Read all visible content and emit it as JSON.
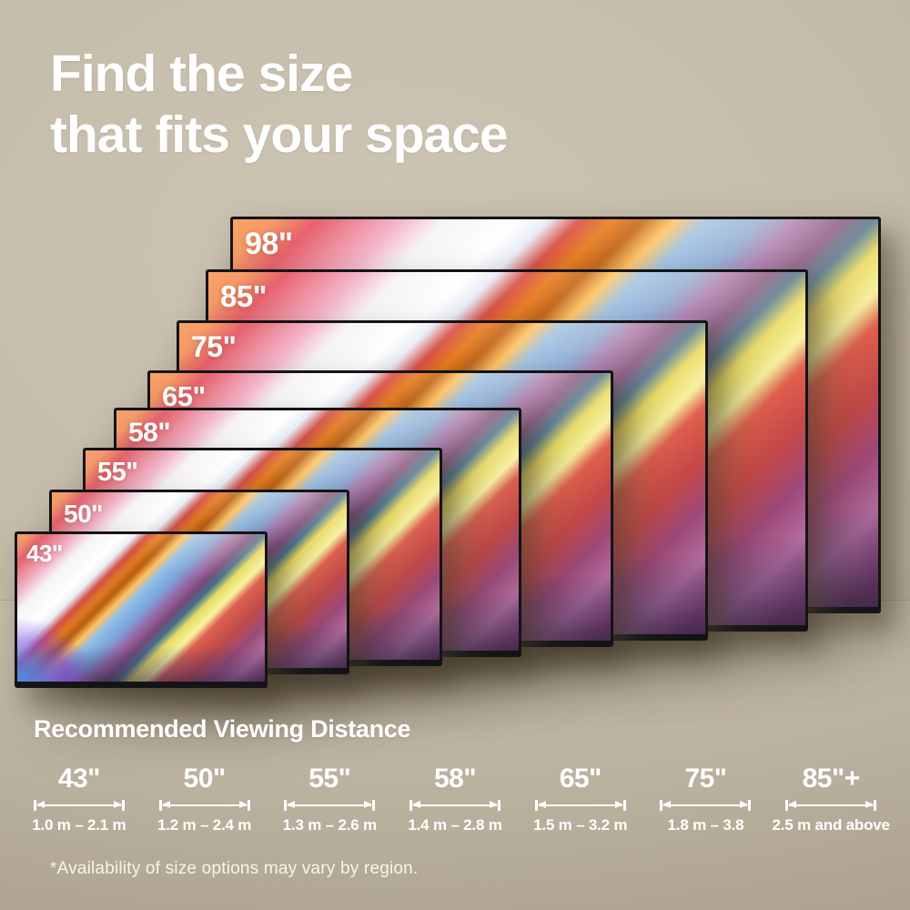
{
  "title": {
    "line1": "Find the size",
    "line2": "that fits your space"
  },
  "tvs": [
    {
      "label": "98\""
    },
    {
      "label": "85\""
    },
    {
      "label": "75\""
    },
    {
      "label": "65\""
    },
    {
      "label": "58\""
    },
    {
      "label": "55\""
    },
    {
      "label": "50\""
    },
    {
      "label": "43\""
    }
  ],
  "viewing_distance": {
    "heading": "Recommended Viewing Distance",
    "columns": [
      {
        "size": "43\"",
        "range": "1.0 m – 2.1 m"
      },
      {
        "size": "50\"",
        "range": "1.2 m – 2.4 m"
      },
      {
        "size": "55\"",
        "range": "1.3 m – 2.6 m"
      },
      {
        "size": "58\"",
        "range": "1.4 m – 2.8 m"
      },
      {
        "size": "65\"",
        "range": "1.5 m – 3.2 m"
      },
      {
        "size": "75\"",
        "range": "1.8 m – 3.8"
      },
      {
        "size": "85\"+",
        "range": "2.5 m and above"
      }
    ]
  },
  "footnote": "*Availability of size options may vary by region.",
  "colors": {
    "wall": "#c4bba9",
    "text": "#ffffff",
    "bezel": "#141417"
  }
}
